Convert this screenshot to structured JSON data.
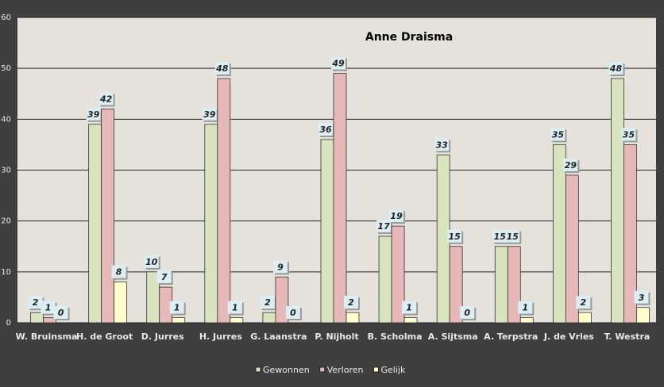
{
  "chart_data": {
    "type": "bar",
    "title": "Anne Draisma",
    "categories": [
      "W. Bruinsma",
      "H. de Groot",
      "D. Jurres",
      "H. Jurres",
      "G. Laanstra",
      "P. Nijholt",
      "B. Scholma",
      "A. Sijtsma",
      "A. Terpstra",
      "J. de Vries",
      "T. Westra"
    ],
    "series": [
      {
        "name": "Gewonnen",
        "color": "#d7e4bd",
        "values": [
          2,
          39,
          10,
          39,
          2,
          36,
          17,
          33,
          15,
          35,
          48
        ]
      },
      {
        "name": "Verloren",
        "color": "#e6b9b8",
        "values": [
          1,
          42,
          7,
          48,
          9,
          49,
          19,
          15,
          15,
          29,
          35
        ]
      },
      {
        "name": "Gelijk",
        "color": "#ffffcc",
        "values": [
          0,
          8,
          1,
          1,
          0,
          2,
          1,
          0,
          1,
          2,
          3
        ]
      }
    ],
    "ylim": [
      0,
      60
    ],
    "yticks": [
      0,
      10,
      20,
      30,
      40,
      50,
      60
    ],
    "grid": true,
    "legend": "bottom"
  }
}
